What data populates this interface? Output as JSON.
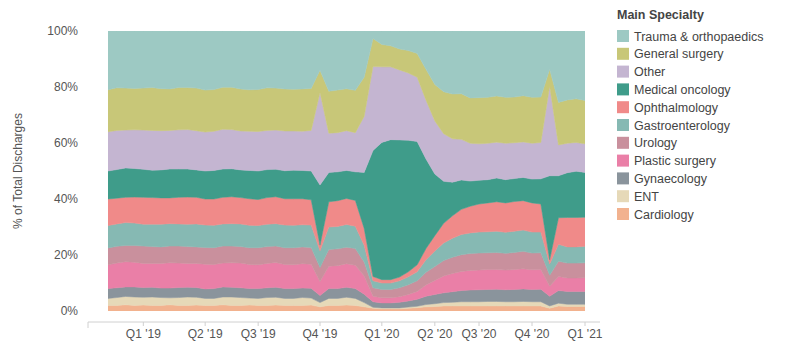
{
  "chart_data": {
    "type": "area",
    "stacked": true,
    "grid": false,
    "legend": "right",
    "y_label": "% of Total Discharges",
    "legend_title": "Main Specialty",
    "ylim": [
      0,
      100
    ],
    "yticks": [
      {
        "value": 0,
        "label": "0%"
      },
      {
        "value": 20,
        "label": "20%"
      },
      {
        "value": 40,
        "label": "40%"
      },
      {
        "value": 60,
        "label": "60%"
      },
      {
        "value": 80,
        "label": "80%"
      },
      {
        "value": 100,
        "label": "100%"
      }
    ],
    "categories": [
      null,
      null,
      null,
      null,
      "Q1 '19",
      null,
      null,
      null,
      null,
      null,
      null,
      "Q2 '19",
      null,
      null,
      null,
      null,
      null,
      "Q3 '19",
      null,
      null,
      null,
      null,
      null,
      null,
      "Q4 '19",
      null,
      null,
      null,
      null,
      null,
      null,
      "Q1 '20",
      null,
      null,
      null,
      null,
      null,
      "Q2 '20",
      null,
      null,
      null,
      null,
      "Q3 '20",
      null,
      null,
      null,
      null,
      null,
      "Q4 '20",
      null,
      null,
      null,
      null,
      null,
      "Q1 '21"
    ],
    "series": [
      {
        "name": "Trauma & orthopaedics",
        "color": "#9dc9c3",
        "values": [
          21,
          20.3,
          20.4,
          20.5,
          20.4,
          20.2,
          20.6,
          20.7,
          20.2,
          20.2,
          20.4,
          21.1,
          20.9,
          20.1,
          20.1,
          20.7,
          21,
          20.9,
          20.3,
          20.4,
          20.7,
          20.8,
          20.7,
          20.5,
          14,
          21.5,
          21.1,
          20.6,
          21.2,
          16.5,
          2.7,
          4.8,
          5.3,
          6.4,
          7,
          8,
          13.7,
          19.1,
          21.7,
          22.5,
          22.4,
          23.9,
          23.8,
          23.7,
          23.2,
          23.7,
          23.6,
          23.1,
          23.7,
          23.6,
          13.7,
          25.5,
          24.6,
          24.2,
          24.8
        ]
      },
      {
        "name": "General surgery",
        "color": "#c8c778",
        "values": [
          15,
          15.2,
          15,
          14.8,
          15,
          15.3,
          15,
          14.8,
          15.1,
          15,
          15.2,
          15,
          14.9,
          15,
          15.1,
          15,
          14.8,
          15,
          15.2,
          15,
          15,
          14.9,
          15.1,
          15,
          8,
          15,
          15.2,
          15,
          15.1,
          14,
          10,
          8,
          7.5,
          7.5,
          8,
          8.5,
          11,
          13,
          15,
          16,
          16.3,
          16.2,
          16.5,
          16.4,
          16.5,
          16.4,
          16.3,
          16.5,
          16.4,
          16.2,
          6,
          15.2,
          15.5,
          15.6,
          15.5
        ]
      },
      {
        "name": "Other",
        "color": "#c4b5d1",
        "values": [
          14,
          14,
          13.5,
          13.8,
          14,
          14.2,
          14,
          13.8,
          14,
          14.1,
          14,
          13.9,
          14,
          14.2,
          14,
          13.9,
          14,
          14.1,
          14,
          14,
          14.2,
          14,
          14,
          14.5,
          33,
          14,
          14,
          14.2,
          14,
          20,
          30,
          27,
          26,
          25,
          24,
          23,
          21,
          19,
          17,
          15.5,
          14.5,
          13.5,
          13,
          13,
          12.8,
          13,
          12.8,
          12.7,
          12.8,
          13,
          32,
          11,
          10.5,
          10.3,
          10.2
        ]
      },
      {
        "name": "Medical oncology",
        "color": "#3f9c8a",
        "values": [
          10,
          10.2,
          10.5,
          10.2,
          10,
          9.8,
          10,
          10.3,
          10.1,
          10,
          9.8,
          10,
          10.2,
          10.1,
          10,
          9.9,
          10.1,
          10.2,
          10,
          9.8,
          10,
          10.2,
          10.1,
          10.3,
          21.5,
          10.5,
          10.3,
          10,
          10.2,
          20,
          45,
          49,
          50,
          49,
          47,
          44,
          32,
          22,
          15,
          12,
          10.5,
          9,
          8.5,
          8.3,
          8.5,
          8.3,
          8.2,
          8.3,
          8.5,
          9,
          30,
          15,
          16,
          16.5,
          16
        ]
      },
      {
        "name": "Ophthalmology",
        "color": "#f08a89",
        "values": [
          9.5,
          9.2,
          9,
          9.3,
          9.6,
          9.5,
          9.4,
          9.2,
          9.5,
          9.7,
          9.5,
          9.3,
          9.4,
          9.5,
          9.6,
          9.4,
          9.5,
          9.3,
          9.5,
          9.6,
          9.4,
          9.5,
          9.3,
          9,
          2,
          9,
          9.2,
          9.3,
          9.2,
          6,
          1.5,
          1.2,
          1.2,
          1.3,
          1.8,
          2.5,
          4,
          5.5,
          7,
          8,
          9,
          9.5,
          10,
          10.3,
          10.5,
          10.5,
          10.6,
          10.5,
          10.4,
          10,
          1.5,
          9.5,
          10.5,
          10.5,
          10.4
        ]
      },
      {
        "name": "Gastroenterology",
        "color": "#86b9b3",
        "values": [
          8,
          8,
          8.2,
          8,
          7.8,
          8,
          8.1,
          8,
          7.9,
          8,
          8.2,
          8,
          8,
          7.9,
          8,
          8.1,
          8,
          7.9,
          8,
          8,
          8.1,
          8,
          7.9,
          8,
          6,
          8,
          8,
          8.1,
          8,
          6,
          2.5,
          2.3,
          2.3,
          2.5,
          2.8,
          3.2,
          4.5,
          5.5,
          6.3,
          6.8,
          7.2,
          7.4,
          7.5,
          7.5,
          7.6,
          7.5,
          7.6,
          7.6,
          7.5,
          7.4,
          4,
          6,
          5.8,
          5.8,
          5.9
        ]
      },
      {
        "name": "Urology",
        "color": "#c9909d",
        "values": [
          6,
          6,
          5.8,
          6,
          6.2,
          6,
          5.9,
          6,
          6.1,
          6,
          5.9,
          6,
          6,
          6.1,
          6,
          5.9,
          6,
          6.1,
          6,
          5.9,
          6,
          6.1,
          6,
          6,
          5,
          6,
          6,
          5.9,
          6,
          5,
          3,
          3,
          3,
          3.2,
          3.5,
          3.8,
          4.5,
          5,
          5.5,
          5.8,
          6,
          6,
          6.1,
          6,
          6.1,
          6,
          6.1,
          6.2,
          6,
          6,
          4,
          5.5,
          5.3,
          5.3,
          5.3
        ]
      },
      {
        "name": "Plastic surgery",
        "color": "#ea7fa7",
        "values": [
          8.5,
          8.8,
          9,
          8.8,
          8.6,
          8.5,
          8.8,
          9,
          8.7,
          8.5,
          8.6,
          8.8,
          8.6,
          8.5,
          8.7,
          8.8,
          8.6,
          8.5,
          8.7,
          8.8,
          8.6,
          8.5,
          8.7,
          8.6,
          5,
          8,
          8.2,
          8.4,
          8.3,
          6.5,
          2,
          1.8,
          1.8,
          2,
          2.3,
          2.8,
          4,
          5,
          6,
          6.5,
          6.8,
          7,
          7,
          7.1,
          7,
          7,
          7.1,
          7.2,
          7,
          7,
          3.5,
          5,
          4.8,
          4.8,
          4.9
        ]
      },
      {
        "name": "Gynaecology",
        "color": "#8a949c",
        "values": [
          3.5,
          3.5,
          3.4,
          3.6,
          3.5,
          3.5,
          3.4,
          3.5,
          3.6,
          3.5,
          3.5,
          3.4,
          3.5,
          3.6,
          3.5,
          3.5,
          3.4,
          3.5,
          3.5,
          3.6,
          3.5,
          3.5,
          3.4,
          3.5,
          2.5,
          3.5,
          3.5,
          3.6,
          3.5,
          3,
          2,
          1.8,
          1.8,
          2,
          2.2,
          2.5,
          3,
          3.3,
          3.5,
          3.8,
          4,
          4.2,
          4.3,
          4.3,
          4.4,
          4.3,
          4.4,
          4.5,
          4.4,
          4.5,
          3.5,
          4.5,
          4.6,
          4.6,
          4.6
        ]
      },
      {
        "name": "ENT",
        "color": "#e6d9b8",
        "values": [
          2.5,
          2.8,
          3,
          3,
          2.8,
          3,
          2.8,
          2.5,
          2.8,
          3,
          2.8,
          2.5,
          2.5,
          2.8,
          3,
          2.8,
          2.5,
          2.5,
          2.8,
          2.8,
          2.5,
          2.5,
          2.8,
          2.5,
          1.5,
          2.5,
          2.5,
          2.8,
          2.5,
          1.5,
          0.3,
          0.3,
          0.3,
          0.3,
          0.4,
          0.5,
          0.8,
          1,
          1.2,
          1.3,
          1.5,
          1.5,
          1.5,
          1.6,
          1.6,
          1.5,
          1.5,
          1.6,
          1.5,
          1.5,
          0.8,
          1,
          0.8,
          0.8,
          0.8
        ]
      },
      {
        "name": "Cardiology",
        "color": "#f2b28f",
        "values": [
          2,
          2,
          2.2,
          2,
          2.1,
          2,
          2,
          2.2,
          2,
          2,
          2.1,
          2,
          2,
          2.2,
          2,
          2,
          2.1,
          2,
          2,
          2.1,
          2,
          2,
          2,
          2.1,
          1.5,
          2,
          2,
          2.1,
          2,
          1.5,
          1,
          0.8,
          0.8,
          0.8,
          1,
          1.2,
          1.5,
          1.6,
          1.8,
          1.8,
          1.8,
          1.8,
          1.8,
          1.8,
          1.8,
          1.8,
          1.8,
          1.8,
          1.8,
          1.8,
          1,
          1.8,
          1.6,
          1.6,
          1.6
        ]
      }
    ]
  }
}
